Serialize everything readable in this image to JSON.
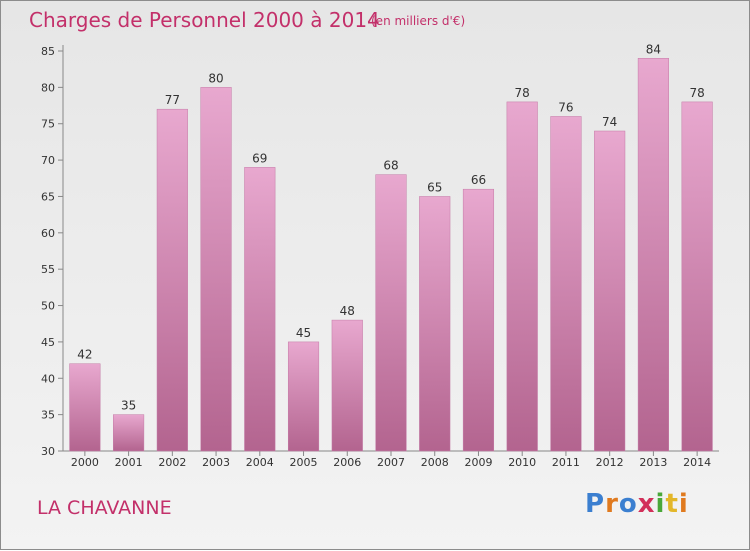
{
  "chart_data": {
    "type": "bar",
    "title": "Charges de Personnel 2000 à 2014",
    "subtitle": "(en milliers d'€)",
    "categories": [
      "2000",
      "2001",
      "2002",
      "2003",
      "2004",
      "2005",
      "2006",
      "2007",
      "2008",
      "2009",
      "2010",
      "2011",
      "2012",
      "2013",
      "2014"
    ],
    "values": [
      42,
      35,
      77,
      80,
      69,
      45,
      48,
      68,
      65,
      66,
      78,
      76,
      74,
      84,
      78
    ],
    "ylim": [
      30,
      85
    ],
    "yticks": [
      30,
      35,
      40,
      45,
      50,
      55,
      60,
      65,
      70,
      75,
      80,
      85
    ],
    "grid": false,
    "bar_color": "#d68ab6"
  },
  "location": "LA CHAVANNE",
  "brand": {
    "name": "Proxiti",
    "letters": [
      "P",
      "r",
      "o",
      "x",
      "i",
      "t",
      "i"
    ],
    "colors": [
      "#3b7fd0",
      "#e07a1f",
      "#4aa83a",
      "#d2305a",
      "#e3b72a"
    ]
  }
}
